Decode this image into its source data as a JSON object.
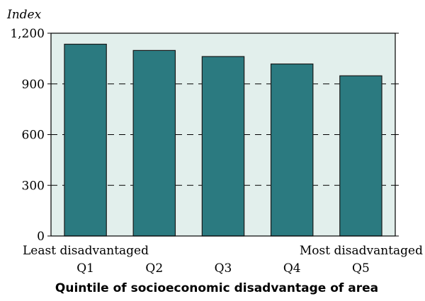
{
  "chart_data": {
    "type": "bar",
    "title": "",
    "ylabel": "Index",
    "xlabel": "Quintile of socioeconomic disadvantage of area",
    "categories": [
      "Q1",
      "Q2",
      "Q3",
      "Q4",
      "Q5"
    ],
    "values": [
      1135,
      1098,
      1062,
      1018,
      948
    ],
    "ylim": [
      0,
      1200
    ],
    "yticks": [
      0,
      300,
      600,
      900,
      1200
    ],
    "ytick_labels": [
      "0",
      "300",
      "600",
      "900",
      "1,200"
    ],
    "xaxis_end_labels": {
      "left": "Least disadvantaged",
      "right": "Most disadvantaged"
    },
    "grid": "horizontal dashed",
    "legend": "none",
    "colors": {
      "bar": "#2b7a80",
      "plot_background": "#e2efec",
      "bar_stroke": "#1a1a1a"
    }
  }
}
